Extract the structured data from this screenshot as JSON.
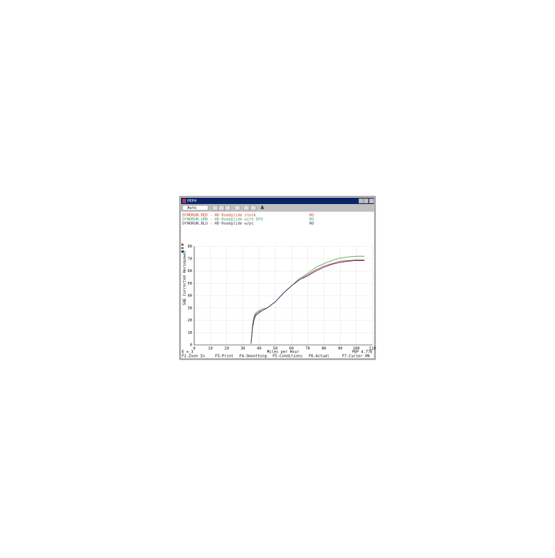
{
  "window": {
    "title": "PEP4",
    "dropdown": "Auto",
    "toolbar_text": "A",
    "status_left": "E = 3",
    "status_right": "PEP 4.77E",
    "function_keys": [
      "F2-Zoon In",
      "F3-Print",
      "F4-Smoothing",
      "F5-Conditions",
      "F6-Actual",
      "F7-Cursor ON"
    ]
  },
  "chart_data": {
    "type": "line",
    "x_label": "Miles per Hour",
    "y_label": "SAE Corrected Horsepower",
    "x": [
      35,
      36,
      37,
      38,
      40,
      42,
      45,
      50,
      55,
      60,
      65,
      70,
      75,
      80,
      85,
      90,
      95,
      100,
      105
    ],
    "series": [
      {
        "name": "DYNORUN.RED - HD Roadglide stock",
        "tag": "RO",
        "color": "#d03030",
        "values": [
          1,
          15,
          22,
          25,
          27,
          28,
          30,
          35,
          42,
          48,
          53,
          57,
          61,
          64,
          66,
          68,
          68.5,
          69,
          69
        ]
      },
      {
        "name": "DYNORUN.GRN - HD Roadglide with DFO",
        "tag": "RO",
        "color": "#30a040",
        "values": [
          1,
          17,
          24,
          26,
          28,
          29,
          30,
          35,
          42,
          48,
          54,
          58,
          63,
          66,
          68.5,
          70.5,
          71.5,
          72,
          72
        ]
      },
      {
        "name": "DYNORUN.BLU - HD Roadglide w/pc",
        "tag": "RO",
        "color": "#302060",
        "values": [
          1,
          14,
          21,
          24,
          26,
          28,
          30,
          35,
          42,
          48,
          53,
          56,
          60,
          63,
          65.5,
          67,
          68,
          68.5,
          68.5
        ]
      }
    ],
    "xlim": [
      0,
      110
    ],
    "ylim": [
      0,
      80
    ],
    "xticks": [
      0,
      10,
      20,
      30,
      40,
      50,
      60,
      70,
      80,
      90,
      100,
      110
    ],
    "yticks": [
      0,
      10,
      20,
      30,
      40,
      50,
      60,
      70,
      80
    ],
    "grid": true
  }
}
